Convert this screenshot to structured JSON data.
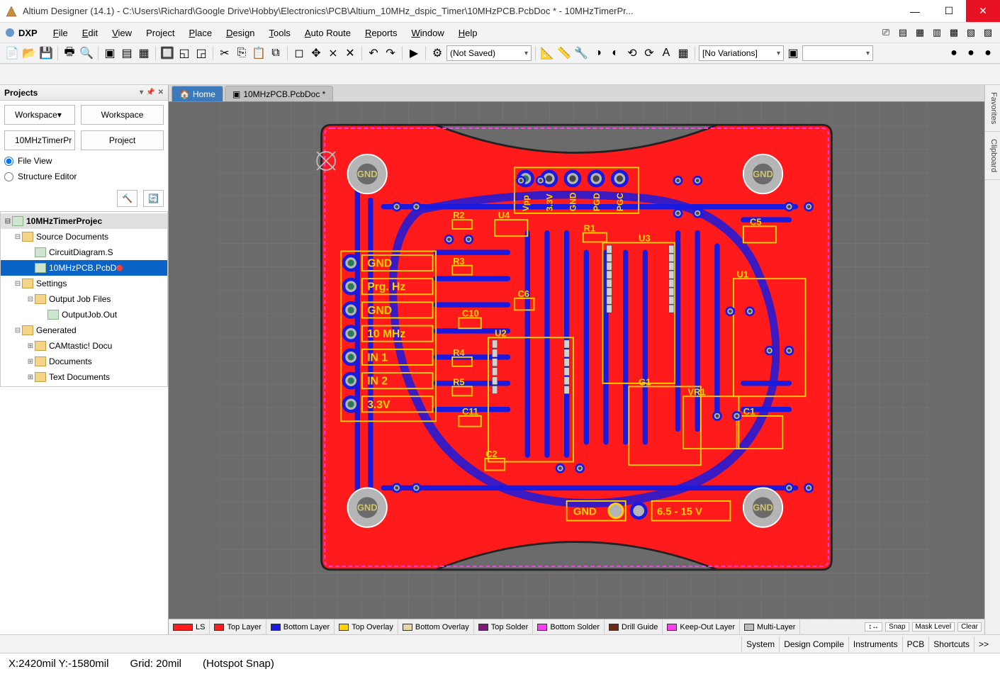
{
  "window": {
    "title": "Altium Designer (14.1) - C:\\Users\\Richard\\Google Drive\\Hobby\\Electronics\\PCB\\Altium_10MHz_dspic_Timer\\10MHzPCB.PcbDoc * - 10MHzTimerPr..."
  },
  "menu": {
    "dxp": "DXP",
    "items": [
      "File",
      "Edit",
      "View",
      "Project",
      "Place",
      "Design",
      "Tools",
      "Auto Route",
      "Reports",
      "Window",
      "Help"
    ]
  },
  "toolbar": {
    "combo1": "(Not Saved)",
    "combo2": "[No Variations]"
  },
  "projects_panel": {
    "title": "Projects",
    "workspace_btn": "Workspace",
    "workspace_btn2": "Workspace",
    "project_file": "10MHzTimerPr",
    "project_btn": "Project",
    "radio_file_view": "File View",
    "radio_structure": "Structure Editor",
    "tree": [
      {
        "d": 0,
        "exp": "-",
        "icon": "proj",
        "label": "10MHzTimerProjec"
      },
      {
        "d": 1,
        "exp": "-",
        "icon": "folder",
        "label": "Source Documents"
      },
      {
        "d": 2,
        "exp": "",
        "icon": "sch",
        "label": "CircuitDiagram.S"
      },
      {
        "d": 2,
        "exp": "",
        "icon": "pcb",
        "label": "10MHzPCB.PcbD",
        "selected": true,
        "modified": true
      },
      {
        "d": 1,
        "exp": "-",
        "icon": "folder",
        "label": "Settings"
      },
      {
        "d": 2,
        "exp": "-",
        "icon": "folder",
        "label": "Output Job Files"
      },
      {
        "d": 3,
        "exp": "",
        "icon": "outjob",
        "label": "OutputJob.Out"
      },
      {
        "d": 1,
        "exp": "-",
        "icon": "folder",
        "label": "Generated"
      },
      {
        "d": 2,
        "exp": "+",
        "icon": "folder",
        "label": "CAMtastic! Docu"
      },
      {
        "d": 2,
        "exp": "+",
        "icon": "folder",
        "label": "Documents"
      },
      {
        "d": 2,
        "exp": "+",
        "icon": "folder",
        "label": "Text Documents"
      }
    ]
  },
  "doc_tabs": {
    "home": "Home",
    "active": "10MHzPCB.PcbDoc *"
  },
  "side_tabs": [
    "Favorites",
    "Clipboard"
  ],
  "pcb": {
    "bg": "#6b6b6b",
    "grid": "#7a7a7a",
    "board_fill": "#ff1b1b",
    "silk": "#ffd200",
    "bottom_copper": "#1a1adf",
    "top_copper": "#ff1b1b",
    "hole": "#b5b5b5",
    "dark": "#1a1a1a",
    "courtyard": "#ffd200",
    "labels_header": [
      "GND",
      "Prg. Hz",
      "GND",
      "10 MHz",
      "IN 1",
      "IN 2",
      "3.3V"
    ],
    "icsp": [
      "Vpp",
      "3.3V",
      "GND",
      "PGD",
      "PGC"
    ],
    "gnd_hole": "GND",
    "power_gnd": "GND",
    "power_v": "6.5 - 15 V",
    "designators": {
      "R1": "R1",
      "R2": "R2",
      "R3": "R3",
      "R4": "R4",
      "R5": "R5",
      "U1": "U1",
      "U2": "U2",
      "U3": "U3",
      "U4": "U4",
      "C1": "C1",
      "C2": "C2",
      "C5": "C5",
      "C6": "C6",
      "C10": "C10",
      "C11": "C11",
      "G1": "G1",
      "VR1": "VR1"
    }
  },
  "layers": [
    {
      "name": "LS",
      "color": "#ff1b1b",
      "special": true
    },
    {
      "name": "Top Layer",
      "color": "#ff1b1b"
    },
    {
      "name": "Bottom Layer",
      "color": "#1a1adf"
    },
    {
      "name": "Top Overlay",
      "color": "#ffd200"
    },
    {
      "name": "Bottom Overlay",
      "color": "#e8d6a6"
    },
    {
      "name": "Top Solder",
      "color": "#7a1a7a"
    },
    {
      "name": "Bottom Solder",
      "color": "#ff3ef2"
    },
    {
      "name": "Drill Guide",
      "color": "#6b2a1a"
    },
    {
      "name": "Keep-Out Layer",
      "color": "#ff3ef2"
    },
    {
      "name": "Multi-Layer",
      "color": "#bdbdbd"
    }
  ],
  "layer_right": [
    "Snap",
    "Mask Level",
    "Clear"
  ],
  "statusbar": {
    "panels": [
      "System",
      "Design Compile",
      "Instruments",
      "PCB",
      "Shortcuts",
      ">>"
    ]
  },
  "statusbar2": {
    "coords": "X:2420mil Y:-1580mil",
    "grid": "Grid: 20mil",
    "snap": "(Hotspot Snap)"
  }
}
